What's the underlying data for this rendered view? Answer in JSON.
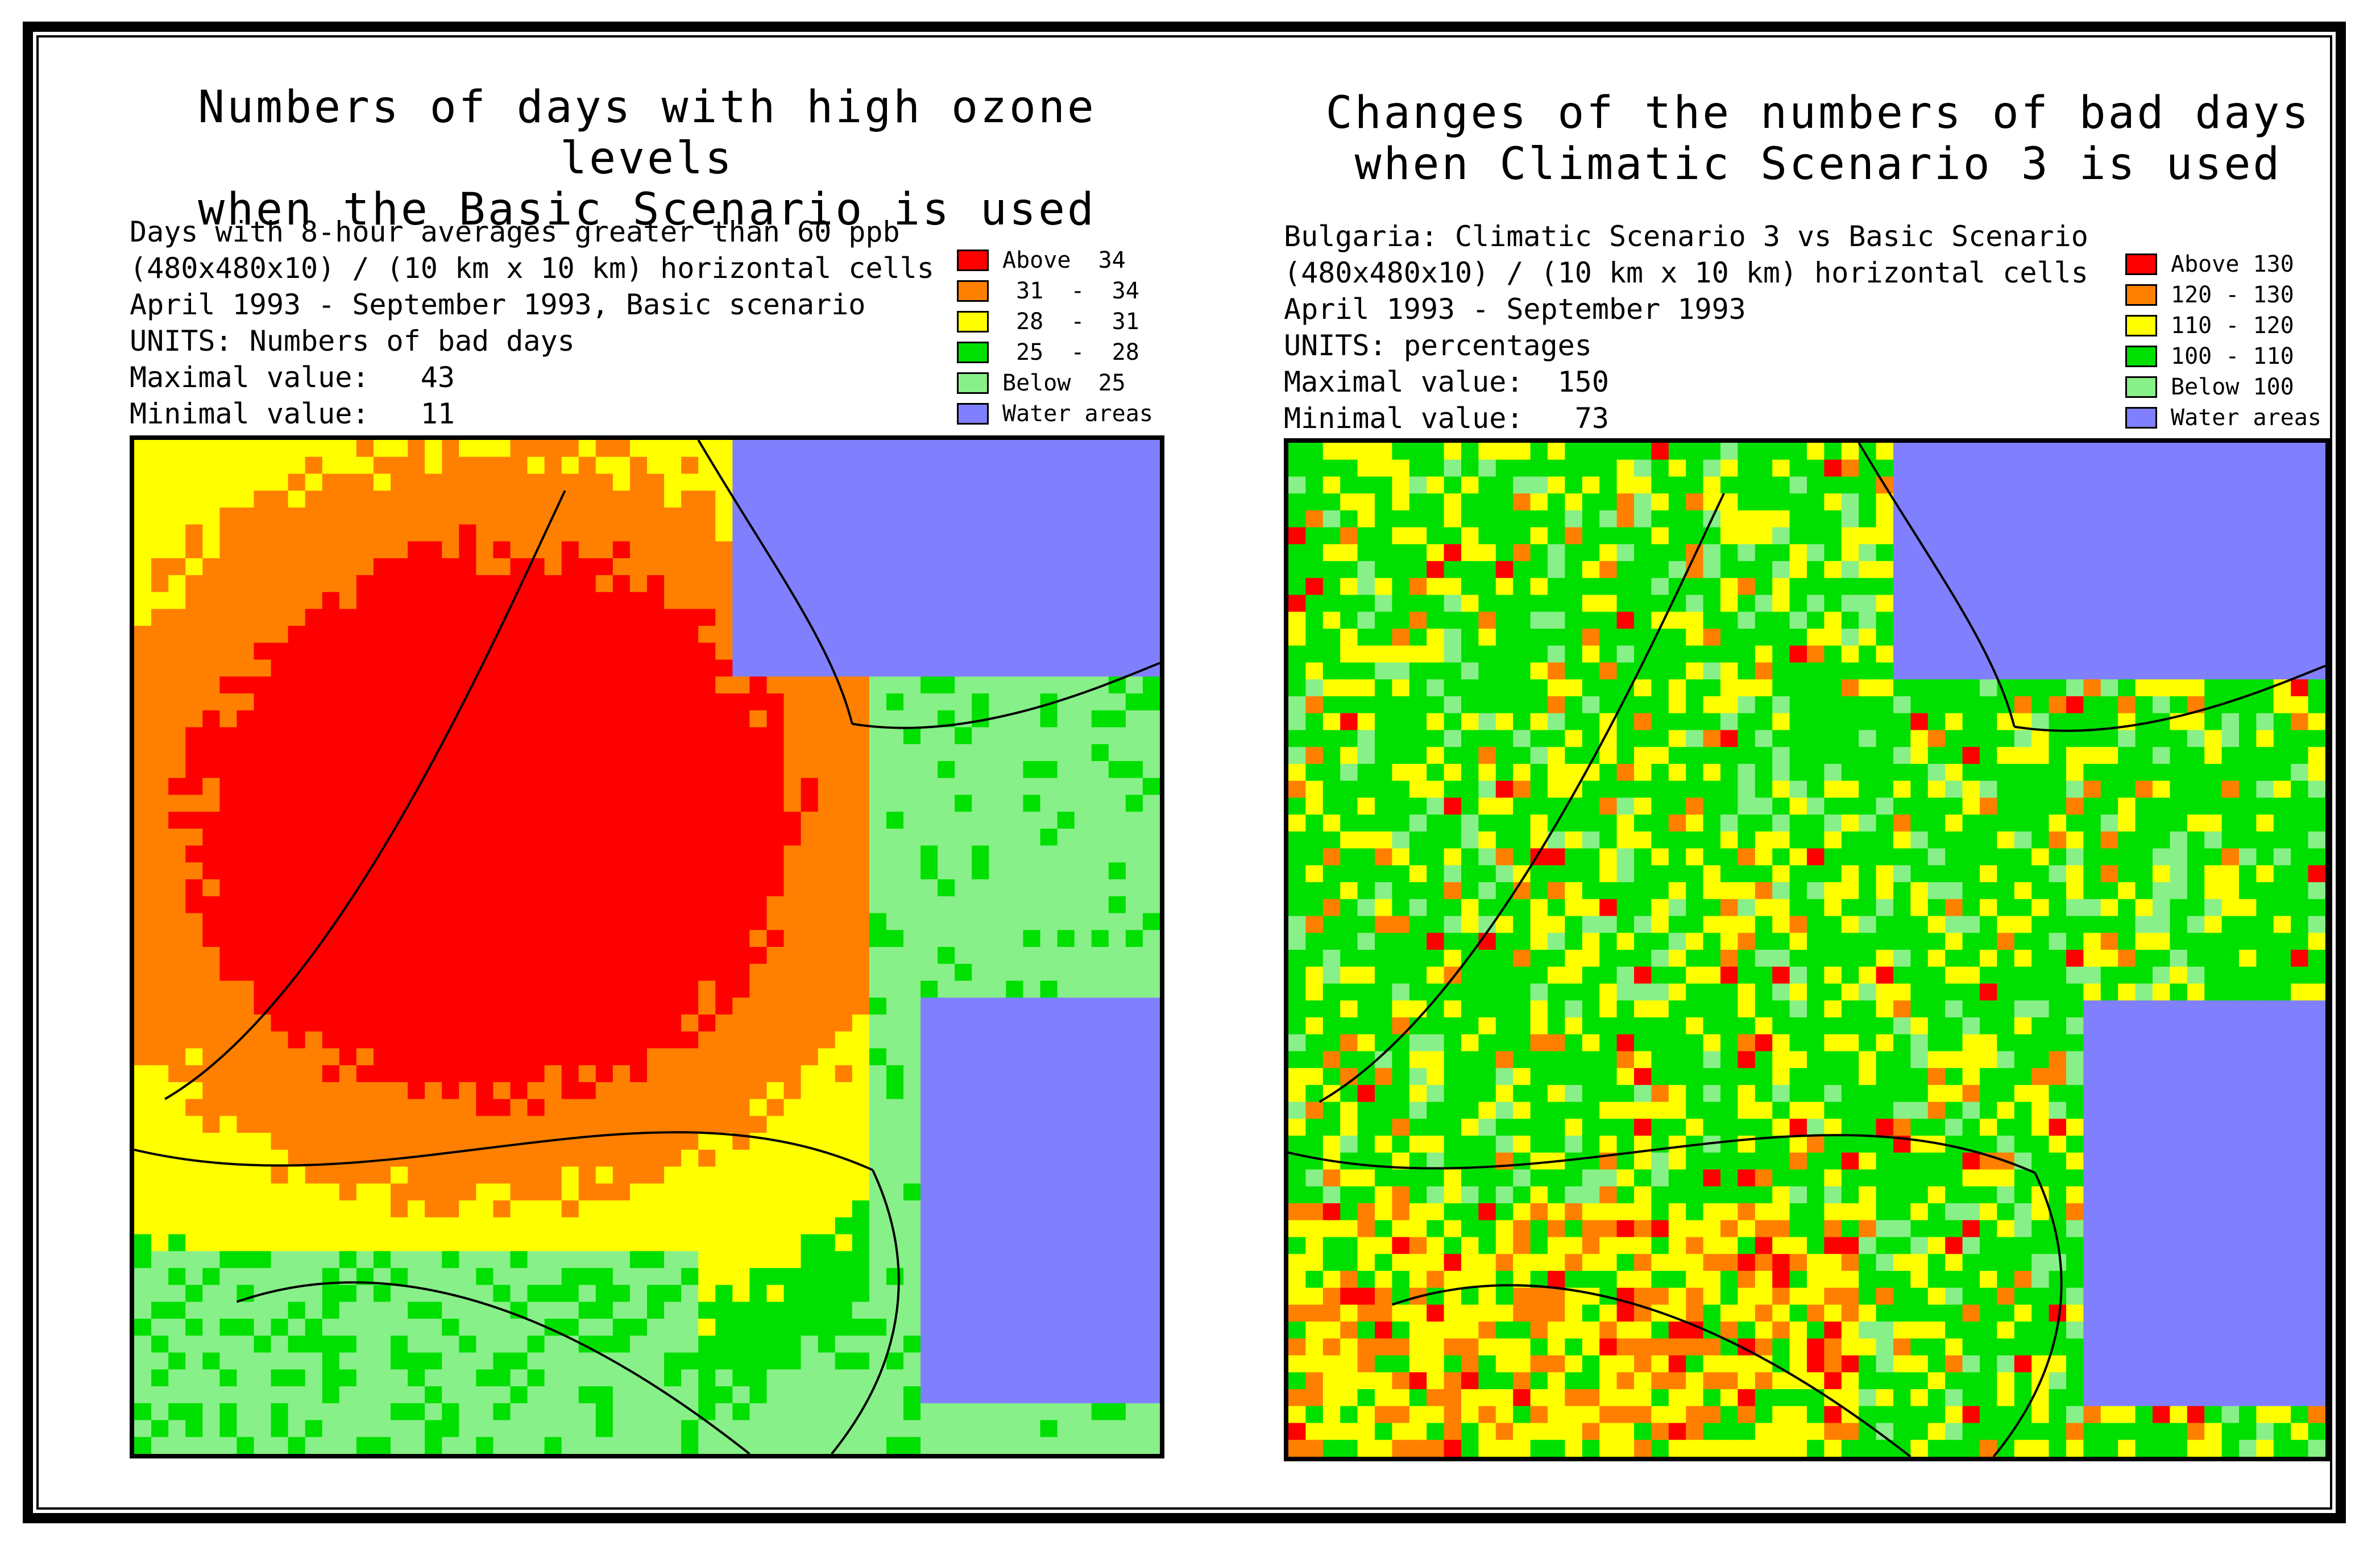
{
  "panels": [
    {
      "title_line1": "Numbers of days with high ozone levels",
      "title_line2": "when the Basic Scenario is used",
      "info": [
        "Days with 8-hour averages greater than 60 ppb",
        "(480x480x10) / (10 km x 10 km) horizontal cells",
        "April 1993 - September 1993, Basic scenario",
        "UNITS: Numbers of bad days",
        "Maximal value:   43",
        "Minimal value:   11"
      ],
      "legend": [
        {
          "label": "Above  34",
          "color": "#ff0000"
        },
        {
          "label": " 31  -  34",
          "color": "#ff8000"
        },
        {
          "label": " 28  -  31",
          "color": "#ffff00"
        },
        {
          "label": " 25  -  28",
          "color": "#00e000"
        },
        {
          "label": "Below  25",
          "color": "#88f088"
        },
        {
          "label": "Water areas",
          "color": "#8080ff"
        }
      ]
    },
    {
      "title_line1": "Changes of the numbers of bad days",
      "title_line2": "when Climatic Scenario 3 is used",
      "info": [
        "Bulgaria: Climatic Scenario 3 vs Basic Scenario",
        "(480x480x10) / (10 km x 10 km) horizontal cells",
        "April 1993 - September 1993",
        "UNITS: percentages",
        "Maximal value:  150",
        "Minimal value:   73"
      ],
      "legend": [
        {
          "label": "Above 130",
          "color": "#ff0000"
        },
        {
          "label": "120 - 130",
          "color": "#ff8000"
        },
        {
          "label": "110 - 120",
          "color": "#ffff00"
        },
        {
          "label": "100 - 110",
          "color": "#00e000"
        },
        {
          "label": "Below 100",
          "color": "#88f088"
        },
        {
          "label": "Water areas",
          "color": "#8080ff"
        }
      ]
    }
  ]
}
